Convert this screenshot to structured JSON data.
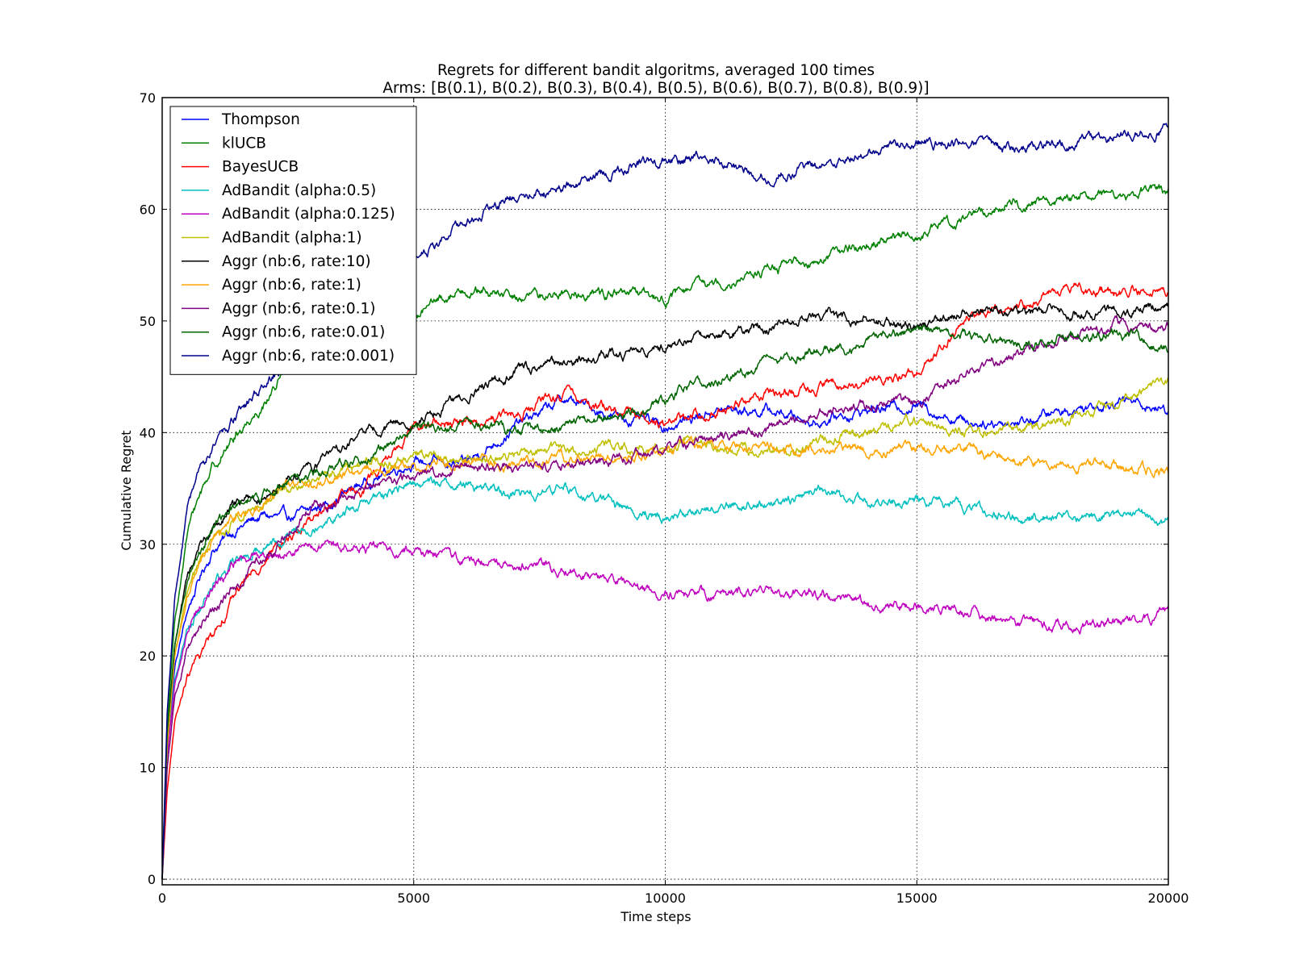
{
  "chart_data": {
    "type": "line",
    "title": "Regrets for different bandit algoritms, averaged 100 times",
    "subtitle": "Arms: [B(0.1), B(0.2), B(0.3), B(0.4), B(0.5), B(0.6), B(0.7), B(0.8), B(0.9)]",
    "xlabel": "Time steps",
    "ylabel": "Cumulative Regret",
    "xlim": [
      0,
      20000
    ],
    "ylim": [
      -0.5,
      70
    ],
    "xticks": [
      0,
      5000,
      10000,
      15000,
      20000
    ],
    "xtick_labels": [
      "0",
      "5000",
      "10000",
      "15000",
      "20000"
    ],
    "yticks": [
      0,
      10,
      20,
      30,
      40,
      50,
      60,
      70
    ],
    "ytick_labels": [
      "0",
      "10",
      "20",
      "30",
      "40",
      "50",
      "60",
      "70"
    ],
    "grid": true,
    "legend_position": "top-left",
    "x": [
      0,
      100,
      250,
      500,
      750,
      1000,
      1500,
      2000,
      2500,
      3000,
      4000,
      5000,
      6000,
      7000,
      8000,
      9000,
      10000,
      11000,
      12000,
      13000,
      14000,
      15000,
      16000,
      17000,
      18000,
      19000,
      20000
    ],
    "series": [
      {
        "name": "Thompson",
        "color": "#0000ff",
        "values": [
          0,
          12,
          19,
          24,
          27,
          29.5,
          31.5,
          32.5,
          32.3,
          33,
          35.5,
          37.5,
          37,
          40.5,
          43,
          41.5,
          40.5,
          42,
          42,
          41,
          42,
          42.5,
          41,
          41,
          42,
          43,
          42
        ]
      },
      {
        "name": "klUCB",
        "color": "#008000",
        "values": [
          0,
          14,
          23,
          31,
          34.5,
          37,
          40,
          42.5,
          46,
          48,
          49.5,
          50.5,
          53,
          52,
          52.5,
          52.5,
          52,
          53.5,
          54.5,
          55.5,
          57,
          57.5,
          59.5,
          60.5,
          61,
          61.5,
          61.5
        ]
      },
      {
        "name": "BayesUCB",
        "color": "#ff0000",
        "values": [
          0,
          8,
          14,
          18,
          20,
          22,
          26,
          28.5,
          30.5,
          32.5,
          35,
          40.5,
          41,
          41.5,
          43.5,
          42,
          41,
          42,
          43.5,
          44,
          44.5,
          45.5,
          50.5,
          51.5,
          53,
          52.5,
          53
        ]
      },
      {
        "name": "AdBandit (alpha:0.5)",
        "color": "#00bfbf",
        "values": [
          0,
          11,
          18,
          22.5,
          24.5,
          26.5,
          28.5,
          30,
          31,
          32,
          33.5,
          35.5,
          35.5,
          34.5,
          35,
          33.5,
          32.5,
          33.5,
          33.5,
          35,
          33.5,
          34,
          33,
          32.5,
          32.5,
          32.5,
          32
        ]
      },
      {
        "name": "AdBandit (alpha:0.125)",
        "color": "#bf00bf",
        "values": [
          0,
          11,
          17.5,
          22,
          24.5,
          26,
          28.5,
          29,
          29.5,
          29.8,
          29.5,
          29.5,
          28.5,
          28.5,
          27.8,
          26.5,
          25.5,
          25.5,
          25.5,
          25.5,
          24.5,
          24.5,
          24,
          23,
          22.5,
          23,
          23.5
        ]
      },
      {
        "name": "AdBandit (alpha:1)",
        "color": "#bfbf00",
        "values": [
          0,
          12,
          20,
          25.5,
          28,
          30,
          32.5,
          34,
          35,
          36,
          37,
          38,
          37.5,
          38,
          38.5,
          38.5,
          39,
          39,
          38,
          39,
          40,
          41,
          40,
          40.5,
          41,
          42.5,
          44.5
        ]
      },
      {
        "name": "Aggr (nb:6, rate:10)",
        "color": "#000000",
        "values": [
          0,
          13,
          21,
          26.5,
          29.5,
          31.5,
          33.5,
          34.5,
          36,
          37,
          40,
          41,
          43,
          45.5,
          46,
          47,
          47.5,
          49,
          49.5,
          50.5,
          50,
          49.5,
          51,
          50.5,
          51,
          50.5,
          51.5
        ]
      },
      {
        "name": "Aggr (nb:6, rate:1)",
        "color": "#ffa500",
        "values": [
          0,
          12,
          20,
          25.5,
          28.5,
          30.5,
          32.5,
          34,
          35,
          35.5,
          36.5,
          37,
          37.5,
          37,
          37.5,
          38,
          38.5,
          39,
          38.5,
          38.5,
          38.5,
          38.5,
          38.5,
          37.5,
          37.5,
          37,
          36.5
        ]
      },
      {
        "name": "Aggr (nb:6, rate:0.1)",
        "color": "#800080",
        "values": [
          0,
          10,
          16.5,
          20.5,
          22.5,
          24,
          26.5,
          29,
          31,
          33.5,
          35,
          36,
          37,
          37,
          37,
          37.5,
          38.5,
          39.5,
          40,
          42,
          42.5,
          42.5,
          45.5,
          47,
          48.5,
          49.5,
          49.5
        ]
      },
      {
        "name": "Aggr (nb:6, rate:0.01)",
        "color": "#006400",
        "values": [
          0,
          13,
          21,
          26.5,
          29.5,
          31,
          33.5,
          34.5,
          35.5,
          36,
          37.5,
          40.5,
          41,
          40,
          40.5,
          41.5,
          43,
          45,
          46,
          47.5,
          48,
          49.5,
          48.5,
          48,
          48.5,
          49,
          47.5
        ]
      },
      {
        "name": "Aggr (nb:6, rate:0.001)",
        "color": "#00008b",
        "values": [
          0,
          15,
          25,
          33,
          36.5,
          38.5,
          41.5,
          44,
          46.5,
          48,
          52,
          55.5,
          59,
          61,
          62,
          63.5,
          64.5,
          64.5,
          63,
          64,
          65,
          66,
          66,
          65.5,
          66,
          66.5,
          67.5
        ]
      }
    ]
  }
}
